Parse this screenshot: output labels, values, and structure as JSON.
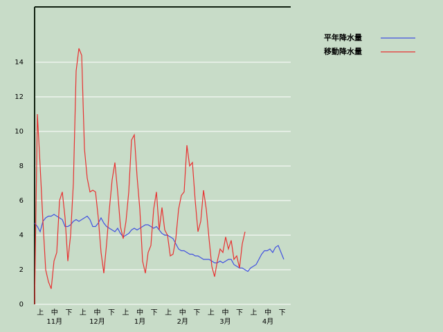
{
  "chart_data": {
    "type": "line",
    "series": [
      {
        "name": "平年降水量",
        "color": "#4050e0",
        "values": [
          4.7,
          4.5,
          4.2,
          4.8,
          5.0,
          5.1,
          5.1,
          5.2,
          5.1,
          5.0,
          4.9,
          4.5,
          4.5,
          4.6,
          4.8,
          4.9,
          4.8,
          4.9,
          5.0,
          5.1,
          4.9,
          4.5,
          4.5,
          4.7,
          5.0,
          4.7,
          4.5,
          4.4,
          4.3,
          4.2,
          4.4,
          4.1,
          3.9,
          4.0,
          4.1,
          4.3,
          4.4,
          4.3,
          4.4,
          4.5,
          4.6,
          4.6,
          4.5,
          4.4,
          4.5,
          4.3,
          4.1,
          4.0,
          4.0,
          3.9,
          3.8,
          3.5,
          3.2,
          3.1,
          3.1,
          3.0,
          2.9,
          2.9,
          2.8,
          2.8,
          2.7,
          2.6,
          2.6,
          2.6,
          2.5,
          2.4,
          2.4,
          2.5,
          2.4,
          2.5,
          2.6,
          2.6,
          2.3,
          2.2,
          2.1,
          2.1,
          2.0,
          1.9,
          2.1,
          2.2,
          2.3,
          2.6,
          2.9,
          3.1,
          3.1,
          3.2,
          3.0,
          3.3,
          3.4,
          3.0,
          2.6
        ]
      },
      {
        "name": "移動降水量",
        "color": "#e83030",
        "values": [
          0,
          11.0,
          8.0,
          4.8,
          2.0,
          1.3,
          0.9,
          2.5,
          3.0,
          6.0,
          6.5,
          5.0,
          2.5,
          4.0,
          7.0,
          13.5,
          14.8,
          14.4,
          9.0,
          7.3,
          6.5,
          6.6,
          6.5,
          5.0,
          3.0,
          1.8,
          3.5,
          5.5,
          7.2,
          8.2,
          6.5,
          4.5,
          3.8,
          4.8,
          6.5,
          9.5,
          9.8,
          7.4,
          5.5,
          2.5,
          1.8,
          3.0,
          3.4,
          5.5,
          6.5,
          4.3,
          5.6,
          4.3,
          4.0,
          2.8,
          2.9,
          3.8,
          5.5,
          6.3,
          6.5,
          9.2,
          8.0,
          8.2,
          6.0,
          4.2,
          4.8,
          6.6,
          5.5,
          3.8,
          2.2,
          1.6,
          2.5,
          3.2,
          3.0,
          3.9,
          3.2,
          3.7,
          2.6,
          2.8,
          2.1,
          3.5,
          4.2,
          null,
          null,
          null,
          null,
          null,
          null,
          null,
          null,
          null,
          null,
          null,
          null,
          null,
          null
        ]
      }
    ],
    "x_labels": [
      "上",
      "中",
      "下",
      "上",
      "中",
      "下",
      "上",
      "中",
      "下",
      "上",
      "中",
      "下",
      "上",
      "中",
      "下",
      "上",
      "中",
      "下"
    ],
    "month_labels": [
      "11月",
      "12月",
      "1月",
      "2月",
      "3月",
      "4月"
    ],
    "ylim": [
      0,
      17.2
    ],
    "yticks": [
      0,
      2,
      4,
      6,
      8,
      10,
      12,
      14
    ],
    "grid": true,
    "legend": "right"
  }
}
